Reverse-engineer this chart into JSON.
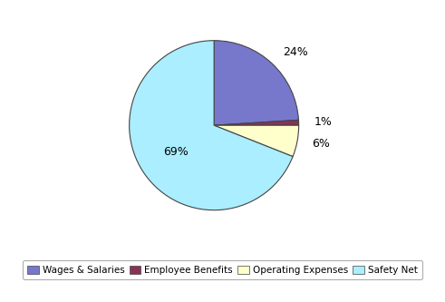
{
  "labels": [
    "Wages & Salaries",
    "Employee Benefits",
    "Operating Expenses",
    "Safety Net"
  ],
  "values": [
    24,
    1,
    6,
    69
  ],
  "colors": [
    "#7777cc",
    "#883355",
    "#ffffcc",
    "#aaeeff"
  ],
  "legend_labels": [
    "Wages & Salaries",
    "Employee Benefits",
    "Operating Expenses",
    "Safety Net"
  ],
  "background_color": "#ffffff",
  "startangle": 90,
  "figsize": [
    4.91,
    3.33
  ],
  "dpi": 100
}
